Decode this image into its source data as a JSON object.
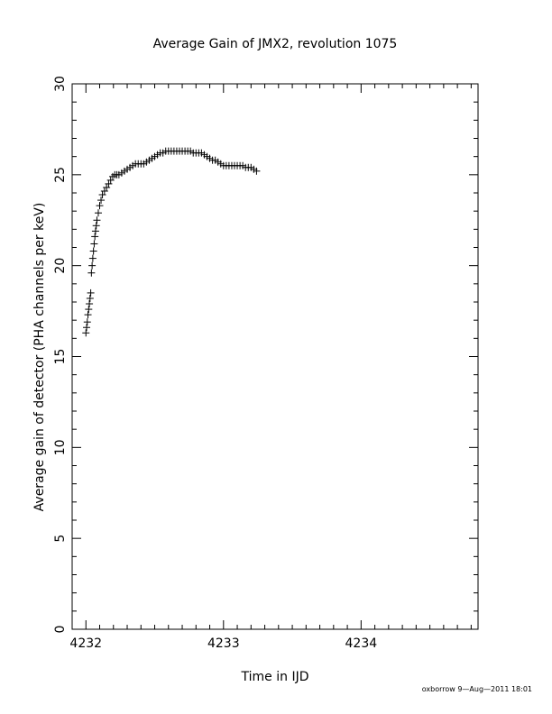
{
  "chart_data": {
    "type": "scatter",
    "title": "Average Gain of JMX2, revolution 1075",
    "xlabel": "Time in IJD",
    "ylabel": "Average gain of detector (PHA channels per keV)",
    "xlim": [
      4231.9,
      4234.85
    ],
    "ylim": [
      0,
      30
    ],
    "xticks": [
      4232,
      4233,
      4234
    ],
    "yticks": [
      0,
      5,
      10,
      15,
      20,
      25,
      30
    ],
    "xtick_labels": [
      "4232",
      "4233",
      "4234"
    ],
    "ytick_labels": [
      "0",
      "5",
      "10",
      "15",
      "20",
      "25",
      "30"
    ],
    "grid": false,
    "marker": "plus",
    "color": "#000000",
    "series": [
      {
        "x": [
          4232.0,
          4232.005,
          4232.01,
          4232.015,
          4232.02,
          4232.025,
          4232.03,
          4232.035,
          4232.04,
          4232.045,
          4232.05,
          4232.055,
          4232.06,
          4232.065,
          4232.07,
          4232.075,
          4232.08,
          4232.09,
          4232.1,
          4232.11,
          4232.12,
          4232.135,
          4232.15,
          4232.165,
          4232.18,
          4232.195,
          4232.21,
          4232.225,
          4232.24,
          4232.26,
          4232.28,
          4232.3,
          4232.32,
          4232.34,
          4232.36,
          4232.38,
          4232.4,
          4232.42,
          4232.44,
          4232.46,
          4232.48,
          4232.5,
          4232.52,
          4232.54,
          4232.56,
          4232.58,
          4232.6,
          4232.62,
          4232.64,
          4232.66,
          4232.68,
          4232.7,
          4232.72,
          4232.74,
          4232.76,
          4232.78,
          4232.8,
          4232.82,
          4232.84,
          4232.86,
          4232.88,
          4232.9,
          4232.92,
          4232.94,
          4232.96,
          4232.98,
          4233.0,
          4233.02,
          4233.04,
          4233.06,
          4233.08,
          4233.1,
          4233.12,
          4233.14,
          4233.16,
          4233.18,
          4233.2,
          4233.22,
          4233.24
        ],
        "y": [
          16.3,
          16.6,
          16.9,
          17.3,
          17.6,
          17.9,
          18.2,
          18.5,
          19.6,
          20.0,
          20.4,
          20.8,
          21.2,
          21.6,
          21.9,
          22.2,
          22.5,
          22.9,
          23.3,
          23.6,
          23.9,
          24.1,
          24.3,
          24.5,
          24.7,
          24.9,
          25.0,
          25.0,
          25.0,
          25.1,
          25.2,
          25.3,
          25.4,
          25.5,
          25.6,
          25.6,
          25.6,
          25.6,
          25.7,
          25.8,
          25.9,
          26.0,
          26.1,
          26.2,
          26.2,
          26.3,
          26.3,
          26.3,
          26.3,
          26.3,
          26.3,
          26.3,
          26.3,
          26.3,
          26.3,
          26.2,
          26.2,
          26.2,
          26.2,
          26.1,
          26.0,
          25.9,
          25.8,
          25.8,
          25.7,
          25.6,
          25.5,
          25.5,
          25.5,
          25.5,
          25.5,
          25.5,
          25.5,
          25.5,
          25.4,
          25.4,
          25.4,
          25.3,
          25.2
        ]
      }
    ]
  },
  "footer": {
    "credit": "oxborrow   9—Aug—2011 18:01"
  }
}
